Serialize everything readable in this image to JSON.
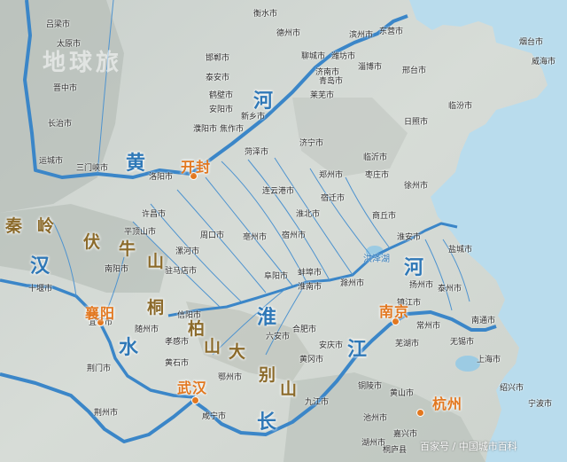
{
  "colors": {
    "sea": "#b9dced",
    "land": "#cfd6d2",
    "river": "#3b86c8",
    "major": "#e2771f",
    "mountain": "#8b6a2a"
  },
  "watermark": {
    "top": "地球旅",
    "bottom": "百家号 / 中国城市百科"
  },
  "major_cities": [
    "开封",
    "襄阳",
    "武汉",
    "南京",
    "杭州"
  ],
  "river_labels": [
    "黄",
    "河",
    "汉",
    "水",
    "淮",
    "河",
    "长",
    "江"
  ],
  "mountain_labels": [
    "秦",
    "岭",
    "伏",
    "牛",
    "山",
    "桐",
    "柏",
    "山",
    "大",
    "别",
    "山"
  ],
  "lake_labels": [
    "洪泽湖"
  ],
  "cities": [
    "吕梁市",
    "衡水市",
    "德州市",
    "滨州市",
    "东营市",
    "烟台市",
    "威海市",
    "太原市",
    "晋中市",
    "聊城市",
    "济南市",
    "淄博市",
    "潍坊市",
    "邢台市",
    "邯郸市",
    "泰安市",
    "莱芜市",
    "青岛市",
    "临汾市",
    "长治市",
    "安阳市",
    "鹤壁市",
    "濮阳市",
    "新乡市",
    "焦作市",
    "菏泽市",
    "济宁市",
    "临沂市",
    "日照市",
    "运城市",
    "三门峡市",
    "洛阳市",
    "郑州市",
    "枣庄市",
    "徐州市",
    "连云港市",
    "商丘市",
    "宿迁市",
    "许昌市",
    "淮北市",
    "平顶山市",
    "周口市",
    "亳州市",
    "宿州市",
    "淮安市",
    "盐城市",
    "漯河市",
    "驻马店市",
    "阜阳市",
    "蚌埠市",
    "南阳市",
    "十堰市",
    "信阳市",
    "六安市",
    "淮南市",
    "滁州市",
    "扬州市",
    "泰州市",
    "南通市",
    "随州市",
    "孝感市",
    "合肥市",
    "镇江市",
    "常州市",
    "无锡市",
    "上海市",
    "荆门市",
    "荆州市",
    "黄冈市",
    "安庆市",
    "咸宁市",
    "九江市",
    "湖州市",
    "嘉兴市",
    "宜昌市",
    "黄石市",
    "鄂州市",
    "芜湖市",
    "铜陵市",
    "池州市",
    "黄山市",
    "绍兴市",
    "宁波市",
    "桐庐县"
  ]
}
